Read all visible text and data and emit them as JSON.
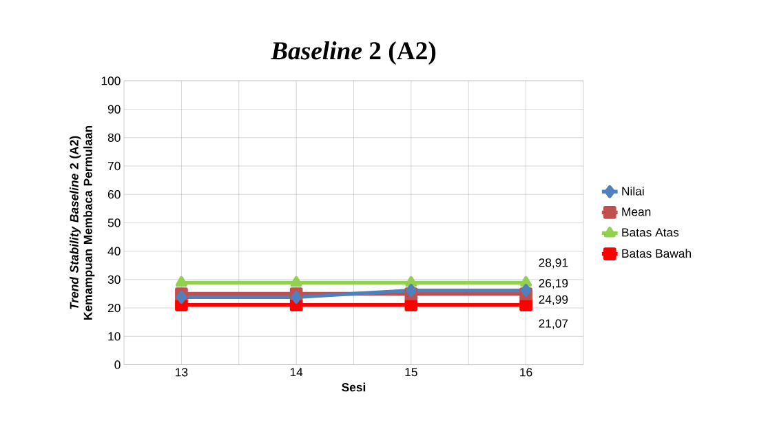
{
  "chart_data": {
    "type": "line",
    "title": "*Baseline* 2 (A2)",
    "xlabel": "Sesi",
    "ylabel": "*Trend Stability Baseline* 2 (A2) Kemampuan Membaca Permulaan",
    "categories": [
      "13",
      "14",
      "15",
      "16"
    ],
    "series": [
      {
        "name": "Nilai",
        "color": "#4f81bd",
        "marker": "diamond",
        "values": [
          23.8,
          23.8,
          26.19,
          26.19
        ],
        "value_labels": [
          null,
          null,
          null,
          "26,19"
        ]
      },
      {
        "name": "Mean",
        "color": "#c0504d",
        "marker": "square",
        "values": [
          24.99,
          24.99,
          24.99,
          24.99
        ],
        "value_labels": [
          null,
          null,
          null,
          "24,99"
        ]
      },
      {
        "name": "Batas Atas",
        "color": "#92d050",
        "marker": "triangle",
        "values": [
          28.91,
          28.91,
          28.91,
          28.91
        ],
        "value_labels": [
          null,
          null,
          null,
          "28,91"
        ]
      },
      {
        "name": "Batas Bawah",
        "color": "#ff0000",
        "marker": "square",
        "values": [
          21.07,
          21.07,
          21.07,
          21.07
        ],
        "value_labels": [
          null,
          null,
          null,
          "21,07"
        ]
      }
    ],
    "ylim": [
      0,
      100
    ],
    "yticks": [
      0,
      10,
      20,
      30,
      40,
      50,
      60,
      70,
      80,
      90,
      100
    ],
    "grid": true,
    "legend": "right"
  }
}
